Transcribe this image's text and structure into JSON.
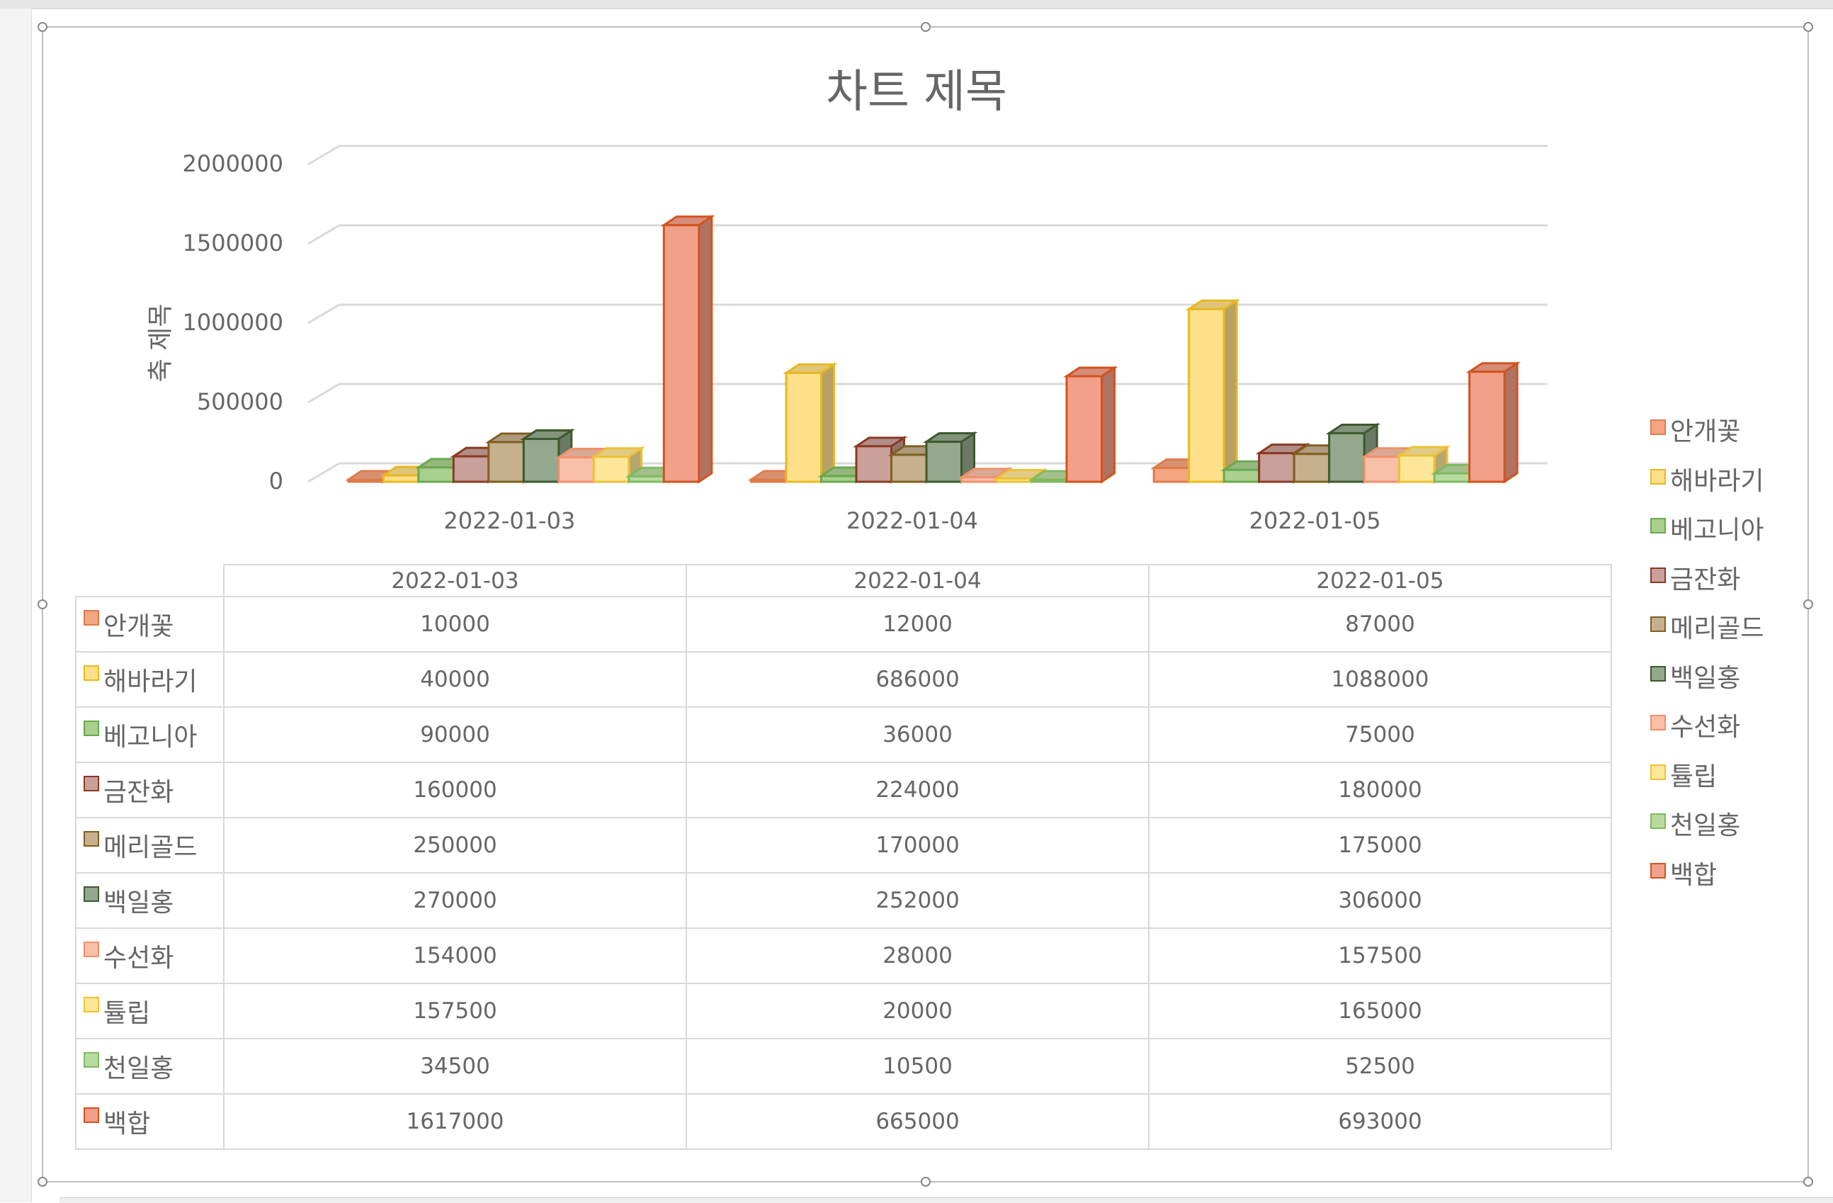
{
  "chart_data": {
    "type": "bar",
    "title": "차트 제목",
    "xlabel": "",
    "ylabel": "축 제목",
    "ylim": [
      0,
      2000000
    ],
    "yticks": [
      "0",
      "500000",
      "1000000",
      "1500000",
      "2000000"
    ],
    "categories": [
      "2022-01-03",
      "2022-01-04",
      "2022-01-05"
    ],
    "series": [
      {
        "name": "안개꽃",
        "values": [
          10000,
          12000,
          87000
        ],
        "color": "#F4A582",
        "border": "#E07A4A"
      },
      {
        "name": "해바라기",
        "values": [
          40000,
          686000,
          1088000
        ],
        "color": "#FFE08A",
        "border": "#E8B820"
      },
      {
        "name": "베고니아",
        "values": [
          90000,
          36000,
          75000
        ],
        "color": "#A9D08E",
        "border": "#6AA84F"
      },
      {
        "name": "금잔화",
        "values": [
          160000,
          224000,
          180000
        ],
        "color": "#C9A09A",
        "border": "#8B3A22"
      },
      {
        "name": "메리골드",
        "values": [
          250000,
          170000,
          175000
        ],
        "color": "#C6B08E",
        "border": "#806020"
      },
      {
        "name": "백일홍",
        "values": [
          270000,
          252000,
          306000
        ],
        "color": "#94A88E",
        "border": "#3D5A2D"
      },
      {
        "name": "수선화",
        "values": [
          154000,
          28000,
          157500
        ],
        "color": "#F8C0A8",
        "border": "#F0906A"
      },
      {
        "name": "튤립",
        "values": [
          157500,
          20000,
          165000
        ],
        "color": "#FFE79A",
        "border": "#EEC233"
      },
      {
        "name": "천일홍",
        "values": [
          34500,
          10500,
          52500
        ],
        "color": "#B9DA9F",
        "border": "#7FBA60"
      },
      {
        "name": "백합",
        "values": [
          1617000,
          665000,
          693000
        ],
        "color": "#F2A08A",
        "border": "#D2531E"
      }
    ],
    "grid": true,
    "legend_position": "right",
    "data_table": true
  }
}
